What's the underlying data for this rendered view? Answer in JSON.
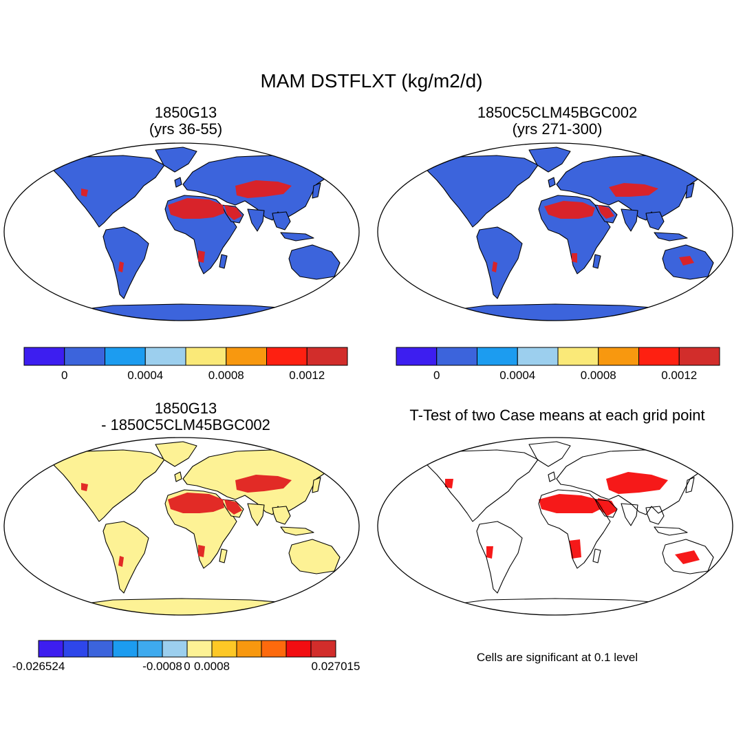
{
  "title": "MAM DSTFLXT (kg/m2/d)",
  "panels": {
    "top_left": {
      "title_line1": "1850G13",
      "title_line2": "(yrs 36-55)"
    },
    "top_right": {
      "title_line1": "1850C5CLM45BGC002",
      "title_line2": "(yrs 271-300)"
    },
    "bottom_left": {
      "title_line1": "1850G13",
      "title_line2": "- 1850C5CLM45BGC002"
    },
    "bottom_right": {
      "title": "T-Test of two Case means at each grid point",
      "note": "Cells are significant at 0.1 level"
    }
  },
  "colorbars": {
    "case": {
      "colors": [
        "#3d1ef0",
        "#3c64dc",
        "#1c9cf0",
        "#9ccfee",
        "#fae978",
        "#f8980f",
        "#fe2011",
        "#d22d2b"
      ],
      "tick_labels": [
        "0",
        "0.0004",
        "0.0008",
        "0.0012"
      ],
      "tick_after_box": [
        1,
        3,
        5,
        7
      ]
    },
    "diff": {
      "colors": [
        "#3d1ef0",
        "#2e46ea",
        "#3c64dc",
        "#1c9cf0",
        "#3eaaee",
        "#9ccfee",
        "#fdf295",
        "#fdc826",
        "#f8980f",
        "#fd6a0d",
        "#f20d11",
        "#d22d2b"
      ],
      "tick_labels": [
        "-0.026524",
        "-0.0008",
        "0",
        "0.0008",
        "0.027015"
      ],
      "tick_after_box": [
        0,
        5,
        6,
        7,
        12
      ]
    }
  },
  "map_colors": {
    "case_background": "#3c64dc",
    "case_high": "#e02020",
    "diff_background": "#fdf295",
    "ttest_significant": "#f50d0d",
    "ocean": "#ffffff"
  }
}
